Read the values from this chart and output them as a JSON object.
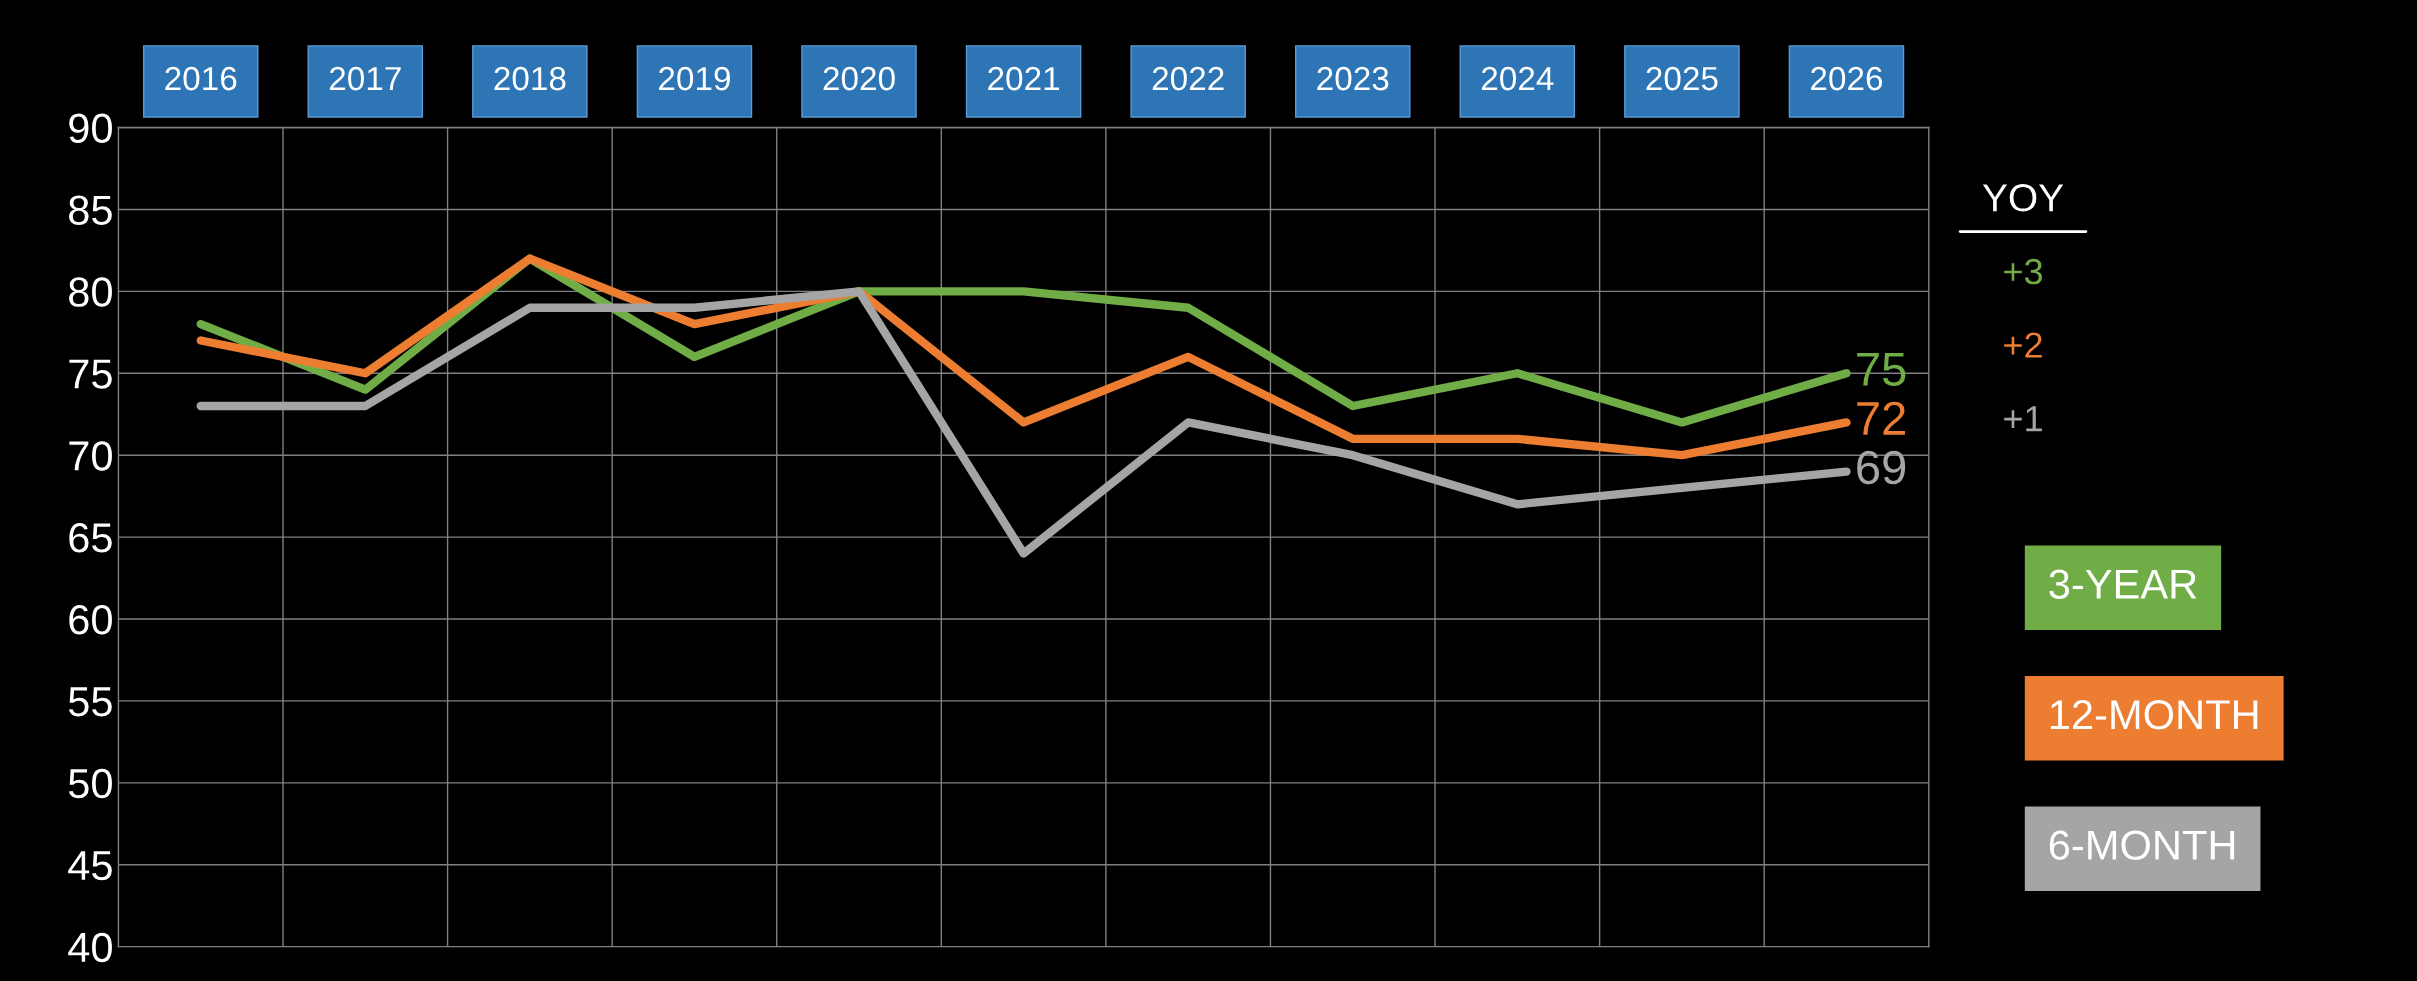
{
  "chart_data": {
    "type": "line",
    "categories": [
      "2016",
      "2017",
      "2018",
      "2019",
      "2020",
      "2021",
      "2022",
      "2023",
      "2024",
      "2025",
      "2026"
    ],
    "series": [
      {
        "name": "3-YEAR",
        "color": "#70ad47",
        "values": [
          78,
          74,
          82,
          76,
          80,
          80,
          79,
          73,
          75,
          72,
          75
        ],
        "value_labels": [
          null,
          null,
          null,
          null,
          null,
          null,
          null,
          null,
          null,
          null,
          "75"
        ]
      },
      {
        "name": "12-MONTH",
        "color": "#ed7d31",
        "values": [
          77,
          75,
          82,
          78,
          80,
          72,
          76,
          71,
          71,
          70,
          72
        ],
        "value_labels": [
          null,
          null,
          null,
          null,
          null,
          null,
          null,
          null,
          null,
          null,
          "72"
        ]
      },
      {
        "name": "6-MONTH",
        "color": "#a5a5a5",
        "values": [
          73,
          73,
          79,
          79,
          80,
          64,
          72,
          70,
          67,
          68,
          69
        ],
        "value_labels": [
          null,
          null,
          null,
          null,
          null,
          null,
          null,
          null,
          null,
          null,
          "69"
        ]
      }
    ],
    "ylim": [
      40,
      90
    ],
    "yticks": [
      40,
      45,
      50,
      55,
      60,
      65,
      70,
      75,
      80,
      85,
      90
    ],
    "grid": true,
    "legend": "right",
    "marker": "none",
    "line_style": "solid",
    "annotations": [
      "YOY",
      "+3",
      "+2",
      "+1"
    ]
  }
}
